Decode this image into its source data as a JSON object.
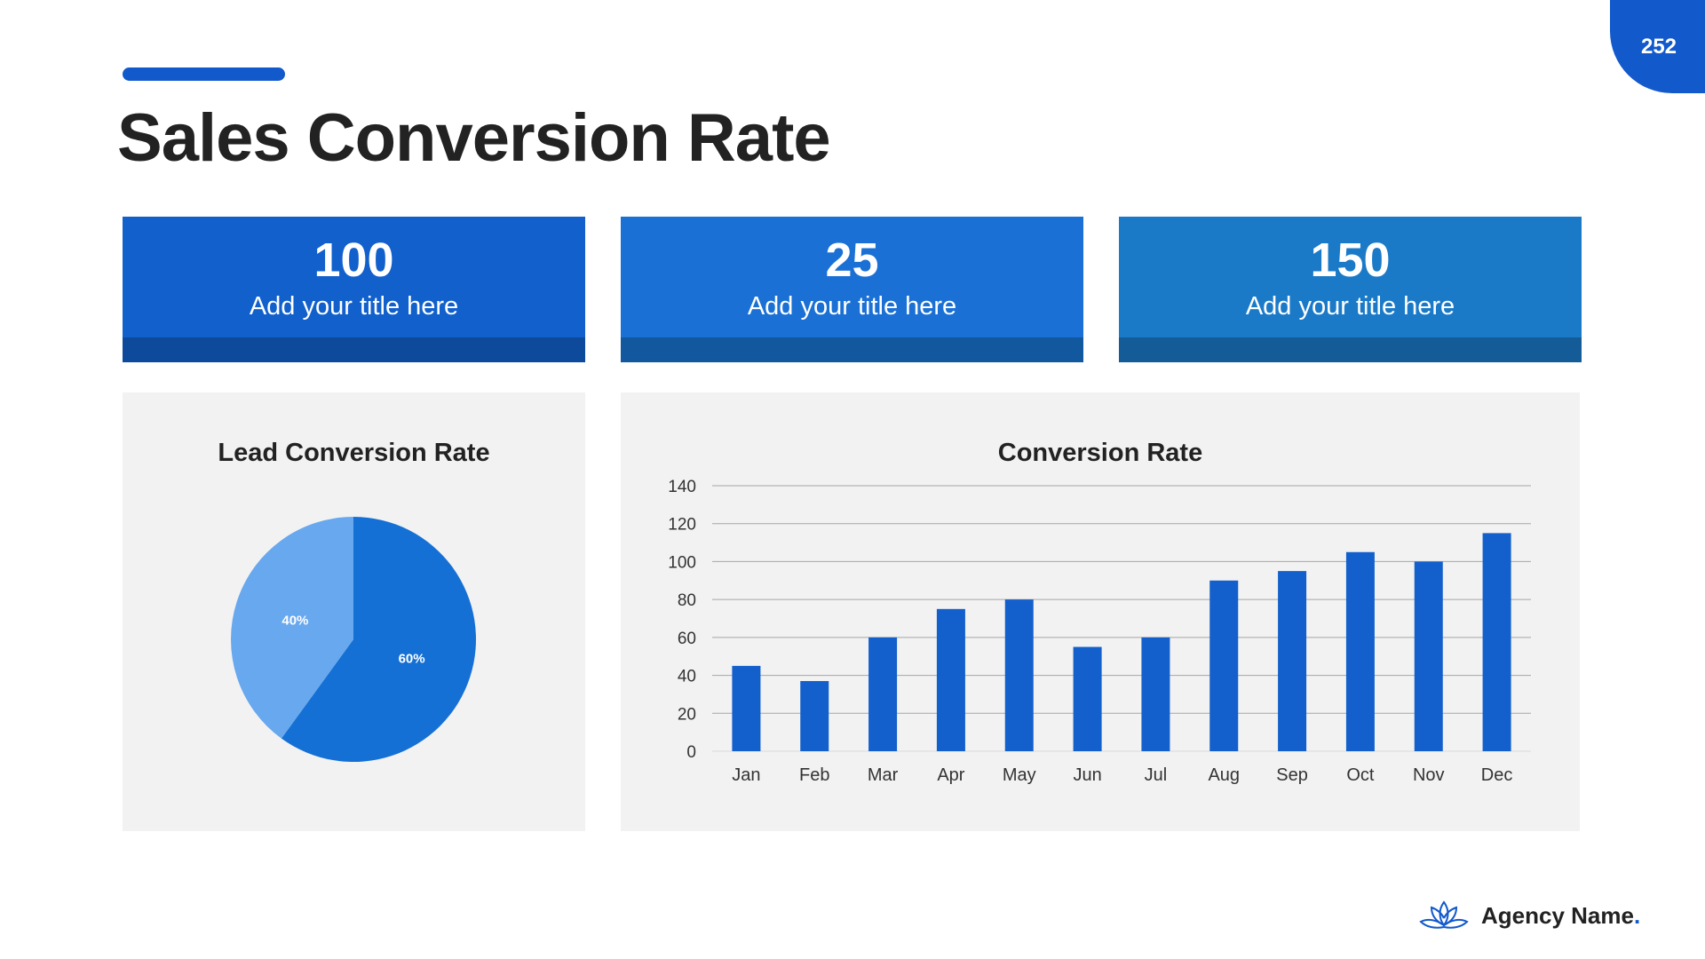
{
  "page_number": "252",
  "title": "Sales Conversion Rate",
  "cards": [
    {
      "value": "100",
      "label": "Add your title here",
      "color": "#1160cc",
      "strip": "#0d4a9c"
    },
    {
      "value": "25",
      "label": "Add your title here",
      "color": "#1a70d4",
      "strip": "#12589e"
    },
    {
      "value": "150",
      "label": "Add your title here",
      "color": "#1b7ac8",
      "strip": "#145c98"
    }
  ],
  "brand": {
    "name": "Agency Name",
    "dot": "."
  },
  "chart_data": [
    {
      "type": "pie",
      "title": "Lead Conversion Rate",
      "slices": [
        {
          "label": "60%",
          "value": 60,
          "color": "#1570d5"
        },
        {
          "label": "40%",
          "value": 40,
          "color": "#68a8ee"
        }
      ]
    },
    {
      "type": "bar",
      "title": "Conversion Rate",
      "categories": [
        "Jan",
        "Feb",
        "Mar",
        "Apr",
        "May",
        "Jun",
        "Jul",
        "Aug",
        "Sep",
        "Oct",
        "Nov",
        "Dec"
      ],
      "values": [
        45,
        37,
        60,
        75,
        80,
        55,
        60,
        90,
        95,
        105,
        100,
        115
      ],
      "yticks": [
        0,
        20,
        40,
        60,
        80,
        100,
        120,
        140
      ],
      "ylim": [
        0,
        140
      ],
      "grid": true,
      "color": "#1360cc"
    }
  ]
}
